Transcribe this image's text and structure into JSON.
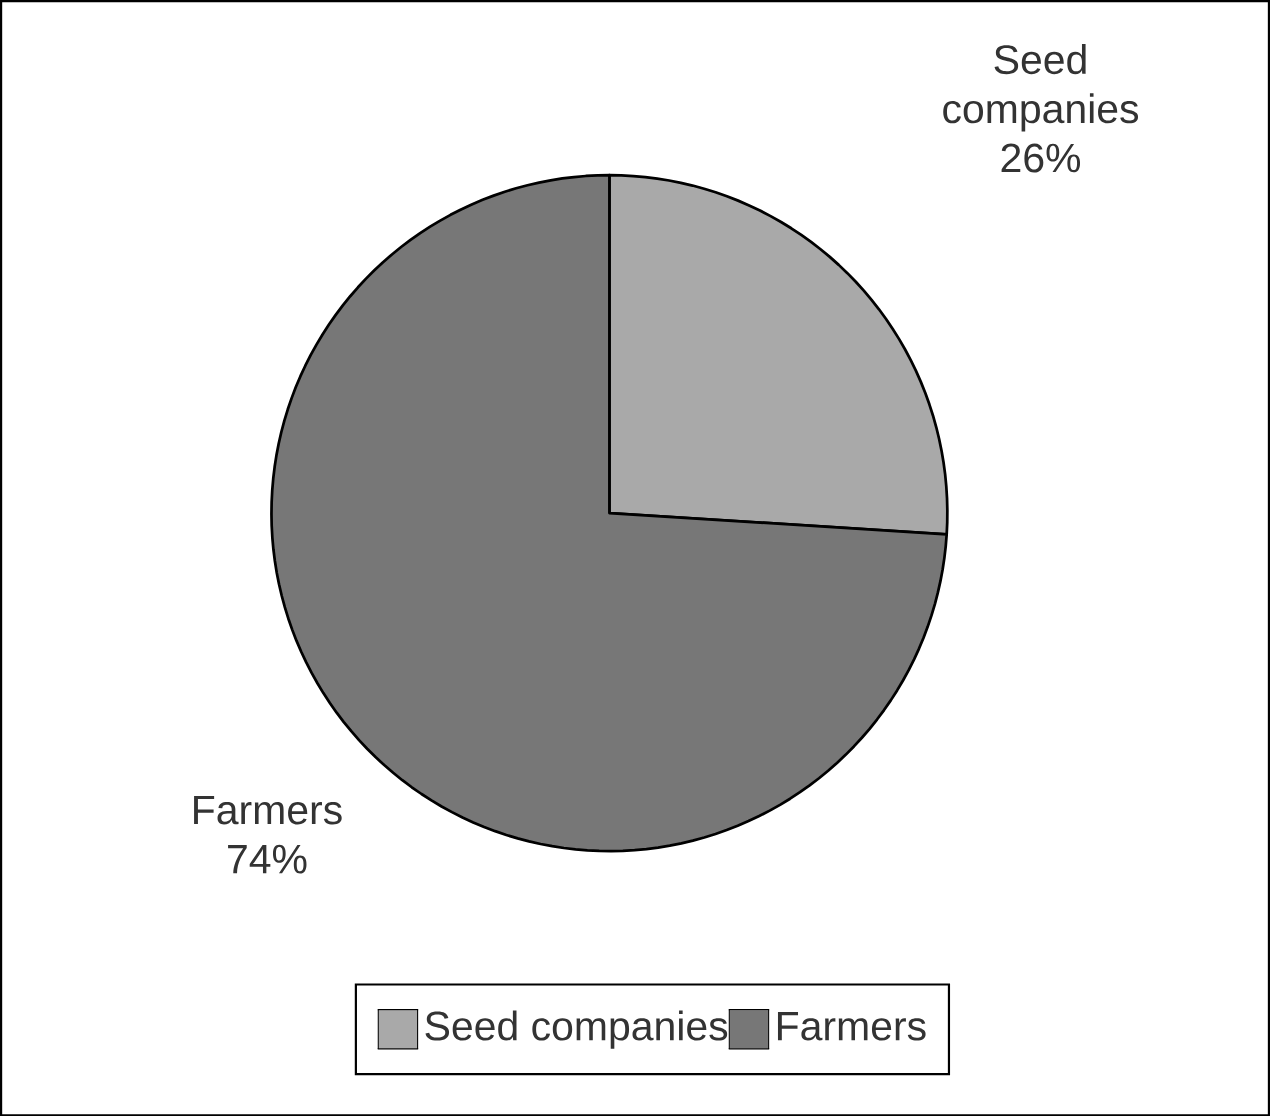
{
  "chart_data": {
    "type": "pie",
    "categories": [
      "Seed companies",
      "Farmers"
    ],
    "values": [
      26,
      74
    ],
    "colors": [
      "#a9a9a9",
      "#777777"
    ],
    "value_labels": [
      "26%",
      "74%"
    ],
    "legend": "bottom"
  }
}
